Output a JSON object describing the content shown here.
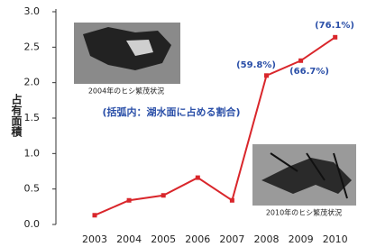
{
  "chart_data": {
    "type": "line",
    "y_label": "占有面積",
    "categories": [
      "2003",
      "2004",
      "2005",
      "2006",
      "2007",
      "2008",
      "2009",
      "2010"
    ],
    "series": [
      {
        "name": "占有面積",
        "color": "#d9262b",
        "values": [
          0.13,
          0.34,
          0.41,
          0.66,
          0.34,
          2.1,
          2.31,
          2.64
        ]
      }
    ],
    "ylim": [
      0,
      3
    ],
    "yticks": [
      {
        "value": 0,
        "label": "0.0"
      },
      0.5,
      {
        "value": 1,
        "label": "1.0"
      },
      1.5,
      {
        "value": 2,
        "label": "2.0"
      },
      2.5,
      {
        "value": 3,
        "label": "3.0"
      }
    ],
    "annotations": [
      "(括弧内：湖水面に占める割合)",
      "(59.8%)",
      "(66.7%)",
      "(76.1%)"
    ],
    "image_captions": [
      "2004年のヒシ繁茂状況",
      "2010年のヒシ繁茂状況"
    ]
  }
}
